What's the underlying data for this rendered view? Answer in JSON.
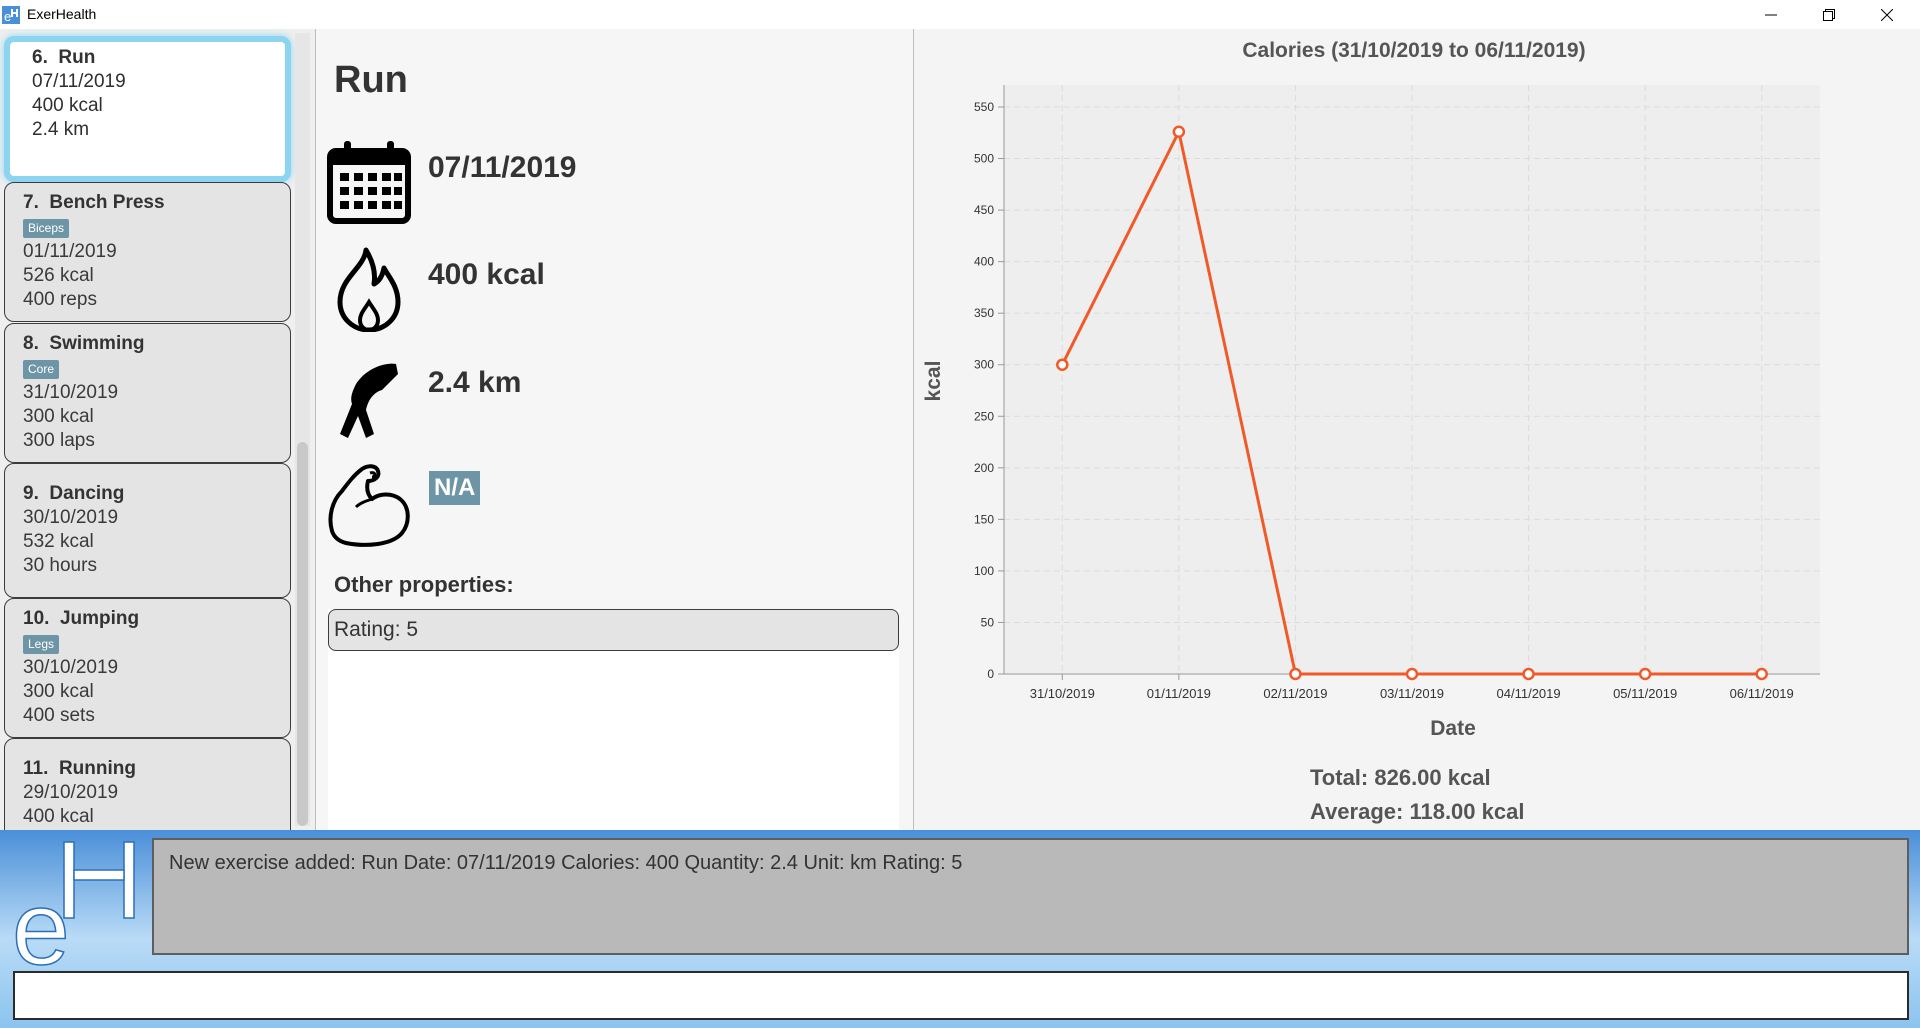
{
  "window": {
    "title": "ExerHealth",
    "icon": "app-icon",
    "controls": [
      "minimize-icon",
      "restore-icon",
      "close-icon"
    ]
  },
  "list": {
    "cards": [
      {
        "index": "6.",
        "name": "Run",
        "muscle": "",
        "date": "07/11/2019",
        "calories": "400 kcal",
        "quantity": "2.4 km"
      },
      {
        "index": "7.",
        "name": "Bench Press",
        "muscle": "Biceps",
        "date": "01/11/2019",
        "calories": "526 kcal",
        "quantity": "400 reps"
      },
      {
        "index": "8.",
        "name": "Swimming",
        "muscle": "Core",
        "date": "31/10/2019",
        "calories": "300 kcal",
        "quantity": "300 laps"
      },
      {
        "index": "9.",
        "name": "Dancing",
        "muscle": "",
        "date": "30/10/2019",
        "calories": "532 kcal",
        "quantity": "30 hours"
      },
      {
        "index": "10.",
        "name": "Jumping",
        "muscle": "Legs",
        "date": "30/10/2019",
        "calories": "300 kcal",
        "quantity": "400 sets"
      },
      {
        "index": "11.",
        "name": "Running",
        "muscle": "",
        "date": "29/10/2019",
        "calories": "400 kcal",
        "quantity": ""
      }
    ]
  },
  "detail": {
    "name": "Run",
    "date": "07/11/2019",
    "calories": "400 kcal",
    "quantity": "2.4 km",
    "muscle": "N/A",
    "other_label": "Other properties:",
    "properties": [
      "Rating: 5"
    ]
  },
  "chart_data": {
    "type": "line",
    "title": "Calories (31/10/2019 to 06/11/2019)",
    "xlabel": "Date",
    "ylabel": "kcal",
    "categories": [
      "31/10/2019",
      "01/11/2019",
      "02/11/2019",
      "03/11/2019",
      "04/11/2019",
      "05/11/2019",
      "06/11/2019"
    ],
    "values": [
      300,
      526,
      0,
      0,
      0,
      0,
      0
    ],
    "ylim": [
      0,
      550
    ],
    "yticks": [
      0,
      50,
      100,
      150,
      200,
      250,
      300,
      350,
      400,
      450,
      500,
      550
    ],
    "grid": true,
    "color": "#f05a28"
  },
  "stats": {
    "total": "Total: 826.00 kcal",
    "average": "Average: 118.00 kcal"
  },
  "result": {
    "text": "New exercise added: Run Date: 07/11/2019 Calories: 400 Quantity: 2.4 Unit: km Rating: 5"
  },
  "command": {
    "value": ""
  }
}
